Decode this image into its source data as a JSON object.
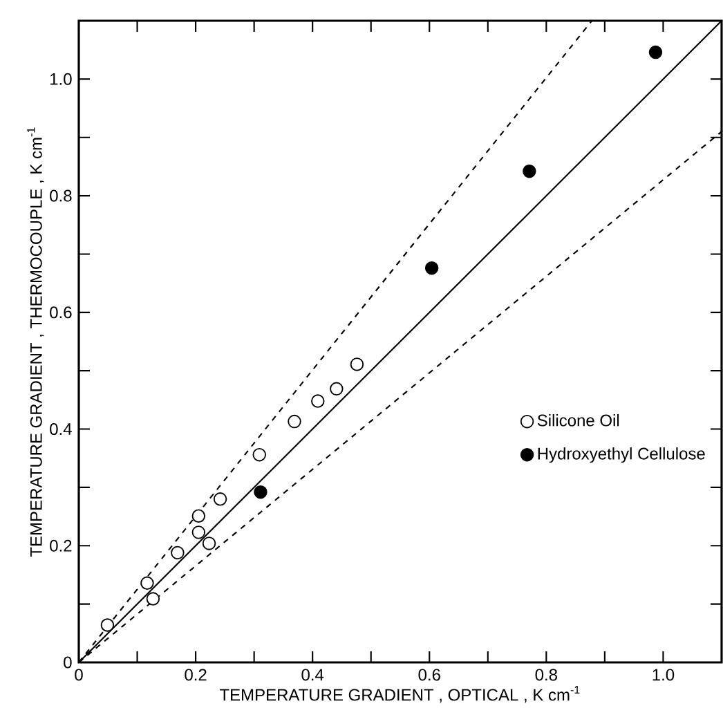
{
  "chart_data": {
    "type": "scatter",
    "xlabel": "TEMPERATURE GRADIENT , OPTICAL ,  K cm$^{-1}$",
    "ylabel": "TEMPERATURE GRADIENT , THERMOCOUPLE ,  K cm$^{-1}$",
    "xlim": [
      0,
      1.1
    ],
    "ylim": [
      0,
      1.1
    ],
    "xticks": [
      0,
      {
        "value": 0.1,
        "label": null
      },
      0.2,
      {
        "value": 0.3,
        "label": null
      },
      0.4,
      {
        "value": 0.5,
        "label": null
      },
      0.6,
      {
        "value": 0.7,
        "label": null
      },
      0.8,
      {
        "value": 0.9,
        "label": null
      },
      {
        "value": 1.0,
        "label": "1.0"
      }
    ],
    "yticks": [
      0,
      {
        "value": 0.1,
        "label": null
      },
      0.2,
      {
        "value": 0.3,
        "label": null
      },
      0.4,
      {
        "value": 0.5,
        "label": null
      },
      0.6,
      {
        "value": 0.7,
        "label": null
      },
      0.8,
      {
        "value": 0.9,
        "label": null
      },
      {
        "value": 1.0,
        "label": "1.0"
      }
    ],
    "grid": false,
    "legend": "right",
    "series": [
      {
        "name": "Silicone Oil",
        "marker": "circle",
        "color": "#ffffff",
        "x": [
          0.049,
          0.117,
          0.127,
          0.169,
          0.205,
          0.205,
          0.223,
          0.242,
          0.309,
          0.369,
          0.409,
          0.441,
          0.476
        ],
        "values": [
          0.064,
          0.136,
          0.109,
          0.188,
          0.251,
          0.223,
          0.204,
          0.28,
          0.356,
          0.413,
          0.448,
          0.469,
          0.511
        ]
      },
      {
        "name": "Hydroxyethyl Cellulose",
        "marker": "circle",
        "color": "#000000",
        "x": [
          0.311,
          0.604,
          0.771,
          0.987
        ],
        "values": [
          0.292,
          0.676,
          0.842,
          1.046
        ]
      },
      {
        "type": "line",
        "line_style": "solid",
        "marker": "none",
        "color": "#000000",
        "x": [
          0,
          1.1
        ],
        "values": [
          0,
          1.1
        ]
      },
      {
        "type": "line",
        "line_style": "dashed",
        "marker": "none",
        "color": "#000000",
        "x": [
          0,
          0.878
        ],
        "values": [
          0,
          1.1
        ]
      },
      {
        "type": "line",
        "line_style": "dashed",
        "marker": "none",
        "color": "#000000",
        "x": [
          0,
          1.1
        ],
        "values": [
          0,
          0.91
        ]
      }
    ]
  }
}
